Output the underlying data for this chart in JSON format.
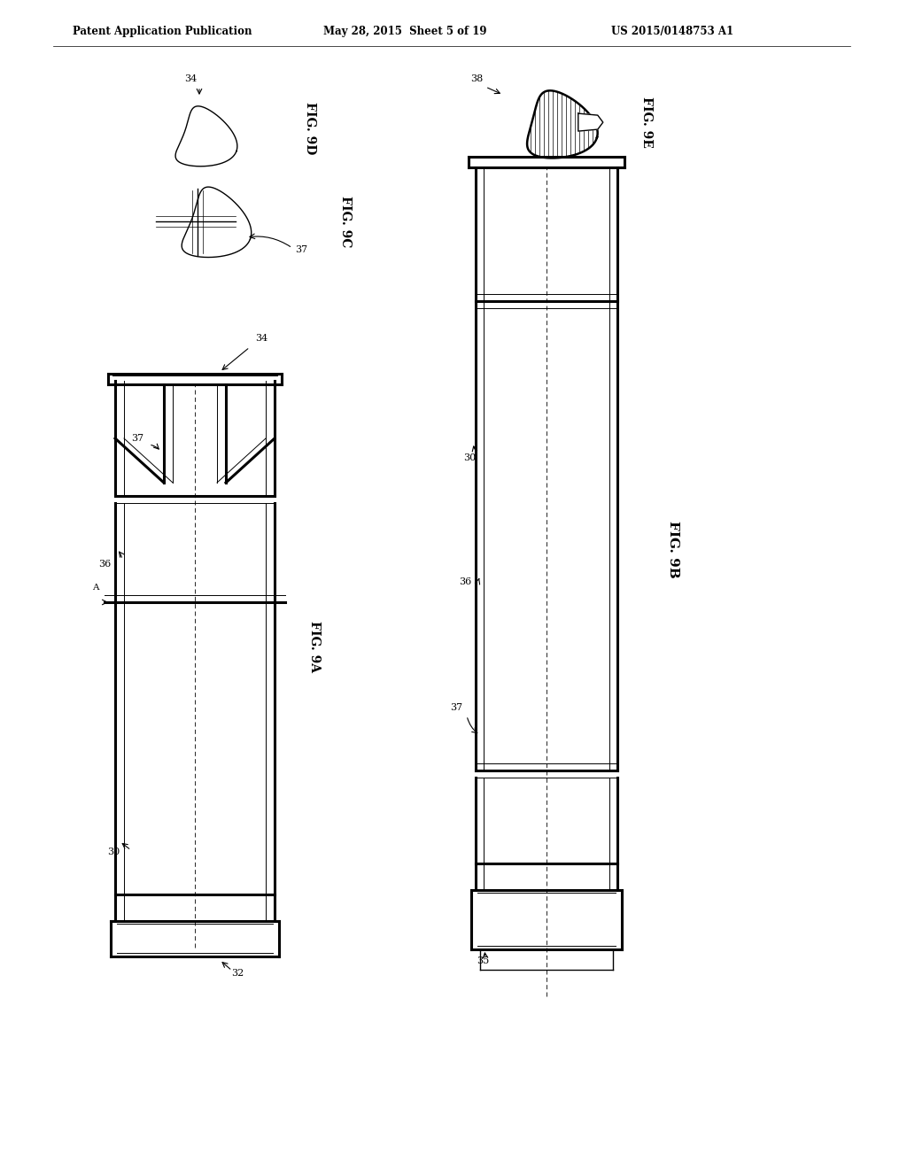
{
  "bg_color": "#ffffff",
  "line_color": "#000000",
  "header_left": "Patent Application Publication",
  "header_mid": "May 28, 2015  Sheet 5 of 19",
  "header_right": "US 2015/0148753 A1",
  "fig9a_label": "FIG. 9A",
  "fig9b_label": "FIG. 9B",
  "fig9c_label": "FIG. 9C",
  "fig9d_label": "FIG. 9D",
  "fig9e_label": "FIG. 9E"
}
